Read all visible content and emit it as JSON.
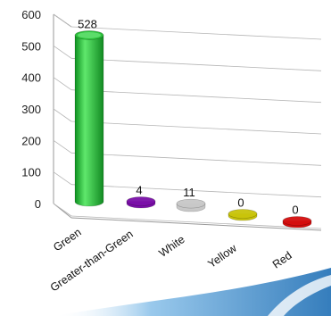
{
  "chart_data": {
    "type": "bar",
    "style": "3d-cylinder",
    "categories": [
      "Green",
      "Greater-than-Green",
      "White",
      "Yellow",
      "Red"
    ],
    "values": [
      528,
      4,
      11,
      0,
      0
    ],
    "data_labels": [
      "528",
      "4",
      "11",
      "0",
      "0"
    ],
    "colors": [
      "#2bbf3a",
      "#7a0fa8",
      "#c8c8c8",
      "#c9c40a",
      "#d40d0d"
    ],
    "ylim": [
      0,
      600
    ],
    "yticks": [
      "0",
      "100",
      "200",
      "300",
      "400",
      "500",
      "600"
    ],
    "grid": true,
    "legend": "none",
    "title": "",
    "xlabel": "",
    "ylabel": ""
  },
  "decoration": {
    "swoosh_colors": [
      "#1f6fb5",
      "#8ec3ea"
    ]
  }
}
